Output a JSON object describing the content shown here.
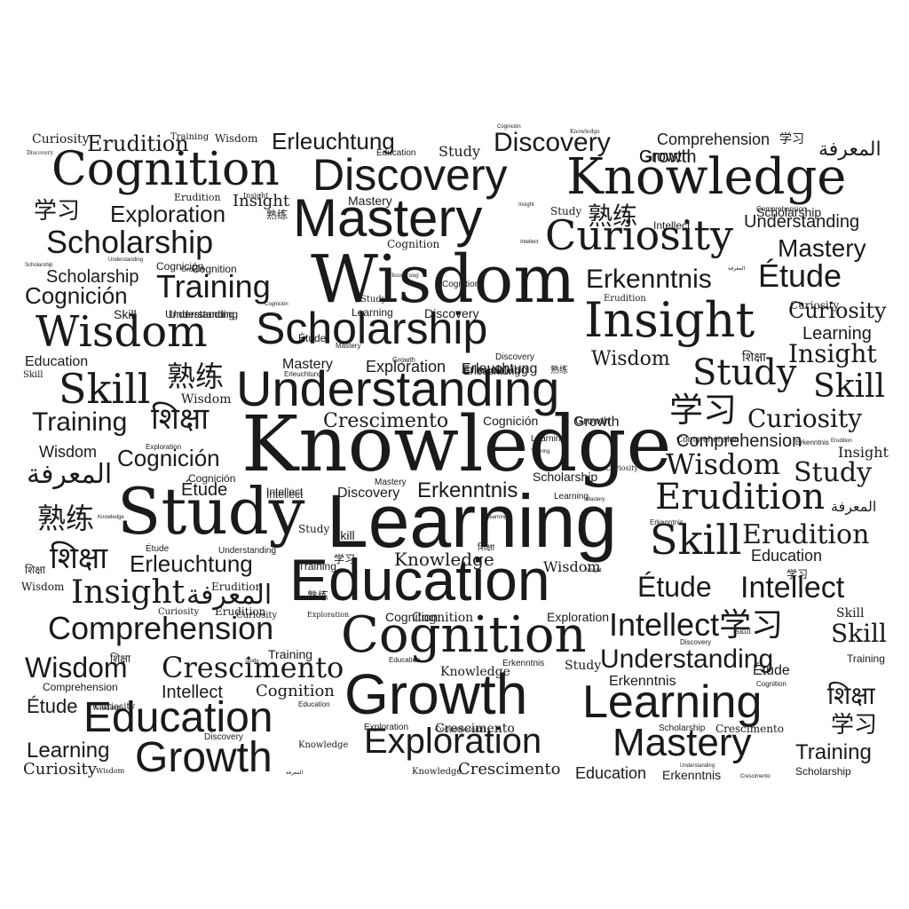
{
  "cloud": {
    "background": "#ffffff",
    "ink": "#1a1a1a",
    "words": [
      {
        "text": "Knowledge"
      },
      {
        "text": "Learning"
      },
      {
        "text": "Education"
      },
      {
        "text": "Wisdom"
      },
      {
        "text": "Understanding"
      },
      {
        "text": "Cognition"
      },
      {
        "text": "Study"
      },
      {
        "text": "Growth"
      },
      {
        "text": "Knowledge"
      },
      {
        "text": "Mastery"
      },
      {
        "text": "Discovery"
      },
      {
        "text": "Scholarship"
      },
      {
        "text": "Insight"
      },
      {
        "text": "Cognition"
      },
      {
        "text": "Curiosity"
      },
      {
        "text": "Learning"
      },
      {
        "text": "Exploration"
      },
      {
        "text": "Wisdom"
      },
      {
        "text": "Education"
      },
      {
        "text": "Growth"
      },
      {
        "text": "Comprehension"
      },
      {
        "text": "Skill"
      },
      {
        "text": "Erudition"
      },
      {
        "text": "Study"
      },
      {
        "text": "Mastery"
      },
      {
        "text": "Scholarship"
      },
      {
        "text": "Discovery"
      },
      {
        "text": "Training"
      },
      {
        "text": "शिक्षा"
      },
      {
        "text": "Insight"
      },
      {
        "text": "Intellect"
      },
      {
        "text": "Erudition"
      },
      {
        "text": "Understanding"
      },
      {
        "text": "Crescimento"
      },
      {
        "text": "Étude"
      },
      {
        "text": "Skill"
      },
      {
        "text": "Erkenntnis"
      },
      {
        "text": "学习"
      },
      {
        "text": "Training"
      },
      {
        "text": "Wisdom"
      },
      {
        "text": "Wisdom"
      },
      {
        "text": "Cognición"
      },
      {
        "text": "Erleuchtung"
      },
      {
        "text": "Intellect学习"
      },
      {
        "text": "Exploration"
      },
      {
        "text": "Curiosity"
      },
      {
        "text": "熟练"
      },
      {
        "text": "المعرفة"
      },
      {
        "text": "Étude"
      },
      {
        "text": "Insight"
      },
      {
        "text": "Mastery"
      },
      {
        "text": "Training"
      },
      {
        "text": "Skill"
      },
      {
        "text": "Erleuchtung"
      },
      {
        "text": "Erkenntnis"
      },
      {
        "text": "Cognición"
      },
      {
        "text": "Curiosity"
      },
      {
        "text": "Comprehension"
      },
      {
        "text": "المعرفة"
      },
      {
        "text": "Crescimento"
      },
      {
        "text": "Erudition"
      },
      {
        "text": "Étude"
      },
      {
        "text": "Study"
      },
      {
        "text": "Skill"
      },
      {
        "text": "学习"
      },
      {
        "text": "शिक्षा"
      },
      {
        "text": "शिक्षा"
      },
      {
        "text": "学习"
      },
      {
        "text": "熟练"
      },
      {
        "text": "熟练"
      },
      {
        "text": "Scholarship"
      },
      {
        "text": "Cognición"
      },
      {
        "text": "Exploration"
      },
      {
        "text": "Wisdom"
      },
      {
        "text": "Learning"
      },
      {
        "text": "Comprehension"
      },
      {
        "text": "Skill"
      },
      {
        "text": "Skill"
      },
      {
        "text": "Insight"
      },
      {
        "text": "Insight"
      },
      {
        "text": "Learning"
      },
      {
        "text": "Curiosity"
      },
      {
        "text": "Growth"
      },
      {
        "text": "Understanding"
      },
      {
        "text": "Erudition"
      },
      {
        "text": "Erleuchtung"
      },
      {
        "text": "Education"
      },
      {
        "text": "Cognition"
      },
      {
        "text": "Knowledge"
      },
      {
        "text": "Intellect"
      },
      {
        "text": "Study"
      },
      {
        "text": "Growth"
      },
      {
        "text": "Mastery"
      },
      {
        "text": "Cognition"
      },
      {
        "text": "Curiosity"
      },
      {
        "text": "Education"
      },
      {
        "text": "Erkenntnis"
      },
      {
        "text": "Scholarship"
      },
      {
        "text": "Training"
      },
      {
        "text": "Training"
      },
      {
        "text": "Crescimento"
      },
      {
        "text": "Crescimento"
      },
      {
        "text": "Étude"
      },
      {
        "text": "Erleuchtung"
      },
      {
        "text": "Curiosity"
      },
      {
        "text": "Erudition"
      },
      {
        "text": "Understanding"
      },
      {
        "text": "Discovery"
      },
      {
        "text": "Comprehension"
      },
      {
        "text": "Cognición"
      },
      {
        "text": "Cognition"
      },
      {
        "text": "Learning"
      },
      {
        "text": "Mastery"
      },
      {
        "text": "Study"
      },
      {
        "text": "Wisdom"
      },
      {
        "text": "Scholarship"
      },
      {
        "text": "Exploration"
      },
      {
        "text": "Education"
      },
      {
        "text": "Erkenntnis"
      },
      {
        "text": "Skill"
      },
      {
        "text": "Wisdom"
      },
      {
        "text": "Understanding"
      },
      {
        "text": "Discovery"
      },
      {
        "text": "Erleuchtung"
      },
      {
        "text": "Study"
      },
      {
        "text": "Growth"
      },
      {
        "text": "Erudition"
      },
      {
        "text": "Curiosity"
      },
      {
        "text": "Cognición"
      },
      {
        "text": "Knowledge"
      },
      {
        "text": "Intellect"
      },
      {
        "text": "Wisdom"
      },
      {
        "text": "Education"
      },
      {
        "text": "Cognition"
      },
      {
        "text": "Discovery"
      },
      {
        "text": "Training"
      },
      {
        "text": "Training"
      },
      {
        "text": "Erkenntnis"
      },
      {
        "text": "Scholarship"
      },
      {
        "text": "Scholarship"
      },
      {
        "text": "Knowledge"
      },
      {
        "text": "Crescimento"
      },
      {
        "text": "Exploration"
      },
      {
        "text": "Wisdom"
      },
      {
        "text": "Comprehension"
      },
      {
        "text": "Curiosity"
      },
      {
        "text": "Wisdom"
      },
      {
        "text": "Insight"
      },
      {
        "text": "Intellect"
      },
      {
        "text": "Intellect"
      },
      {
        "text": "Understanding"
      },
      {
        "text": "Growth"
      },
      {
        "text": "Discovery"
      },
      {
        "text": "Erleuchtung"
      },
      {
        "text": "Erudition"
      },
      {
        "text": "Cognition"
      },
      {
        "text": "المعرفة"
      },
      {
        "text": "المعرفة"
      },
      {
        "text": "Mastery"
      },
      {
        "text": "Mastery"
      },
      {
        "text": "Learning"
      },
      {
        "text": "Learning"
      },
      {
        "text": "Study"
      },
      {
        "text": "Study"
      },
      {
        "text": "学习"
      },
      {
        "text": "学习"
      },
      {
        "text": "学习"
      },
      {
        "text": "熟练"
      },
      {
        "text": "熟练"
      },
      {
        "text": "熟练"
      },
      {
        "text": "शिक्षा"
      },
      {
        "text": "शिक्षा"
      },
      {
        "text": "शिक्षा"
      },
      {
        "text": "शिक्षा"
      },
      {
        "text": "Étude"
      },
      {
        "text": "Étude"
      },
      {
        "text": "Étude"
      },
      {
        "text": "Curiosity"
      },
      {
        "text": "Curiosity"
      },
      {
        "text": "Skill"
      },
      {
        "text": "Skill"
      },
      {
        "text": "Wisdom"
      },
      {
        "text": "Wisdom"
      },
      {
        "text": "Knowledge"
      },
      {
        "text": "Knowledge"
      },
      {
        "text": "Exploration"
      },
      {
        "text": "Exploration"
      },
      {
        "text": "Cognition"
      },
      {
        "text": "Cognition"
      },
      {
        "text": "Growth"
      },
      {
        "text": "Growth"
      },
      {
        "text": "Education"
      },
      {
        "text": "Education"
      },
      {
        "text": "Erkenntnis"
      },
      {
        "text": "Erkenntnis"
      },
      {
        "text": "Discovery"
      },
      {
        "text": "Comprehension"
      },
      {
        "text": "Comprehension"
      },
      {
        "text": "Scholarship"
      },
      {
        "text": "Understanding"
      },
      {
        "text": "Understanding"
      },
      {
        "text": "Insight"
      },
      {
        "text": "Insight"
      },
      {
        "text": "Crescimento"
      },
      {
        "text": "Erudition"
      },
      {
        "text": "Erleuchtung"
      },
      {
        "text": "Cognición"
      },
      {
        "text": "Cognición"
      },
      {
        "text": "Training"
      },
      {
        "text": "Study"
      },
      {
        "text": "Mastery"
      },
      {
        "text": "المعرفة"
      },
      {
        "text": "المعرفة"
      },
      {
        "text": "Intellect"
      },
      {
        "text": "Learning"
      },
      {
        "text": "Knowledge"
      },
      {
        "text": "Discovery"
      },
      {
        "text": "Exploration"
      },
      {
        "text": "Wisdom"
      }
    ]
  }
}
